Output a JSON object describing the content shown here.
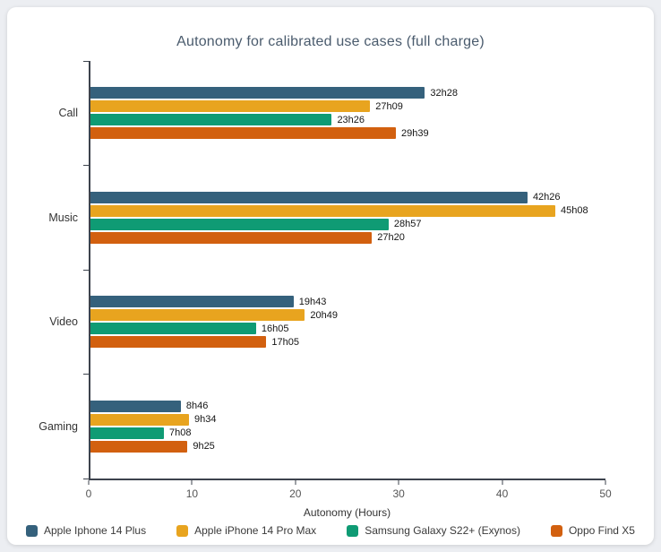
{
  "chart_data": {
    "type": "bar",
    "orientation": "horizontal",
    "title": "Autonomy for calibrated use cases (full charge)",
    "xlabel": "Autonomy (Hours)",
    "xlim": [
      0,
      50
    ],
    "xticks": [
      0,
      10,
      20,
      30,
      40,
      50
    ],
    "grid": false,
    "legend_position": "bottom",
    "categories": [
      "Call",
      "Music",
      "Video",
      "Gaming"
    ],
    "series": [
      {
        "name": "Apple Iphone 14 Plus",
        "color": "#35617c",
        "values": [
          32.47,
          42.43,
          19.72,
          8.77
        ],
        "labels": [
          "32h28",
          "42h26",
          "19h43",
          "8h46"
        ]
      },
      {
        "name": "Apple iPhone 14 Pro Max",
        "color": "#e8a41f",
        "values": [
          27.15,
          45.13,
          20.82,
          9.57
        ],
        "labels": [
          "27h09",
          "45h08",
          "20h49",
          "9h34"
        ]
      },
      {
        "name": "Samsung Galaxy S22+ (Exynos)",
        "color": "#0f9b74",
        "values": [
          23.43,
          28.95,
          16.08,
          7.13
        ],
        "labels": [
          "23h26",
          "28h57",
          "16h05",
          "7h08"
        ]
      },
      {
        "name": "Oppo Find X5",
        "color": "#d2600f",
        "values": [
          29.65,
          27.33,
          17.08,
          9.42
        ],
        "labels": [
          "29h39",
          "27h20",
          "17h05",
          "9h25"
        ]
      }
    ]
  }
}
